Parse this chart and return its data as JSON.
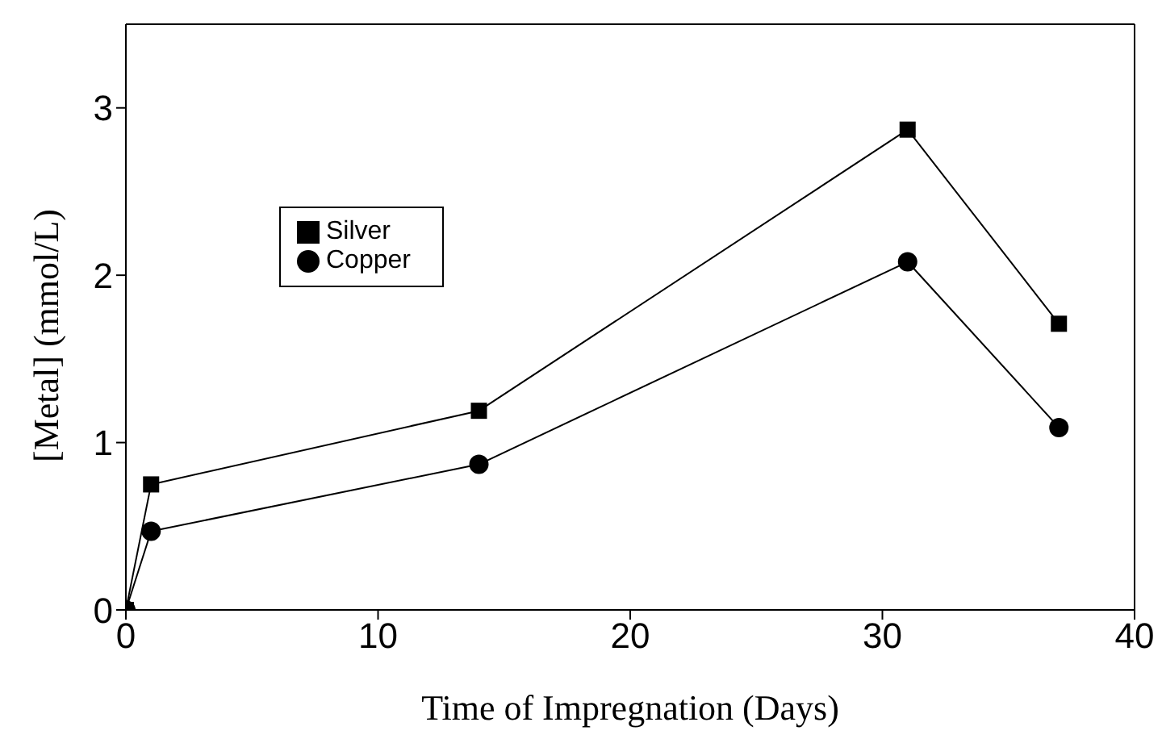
{
  "chart_data": {
    "type": "line",
    "xlabel": "Time of Impregnation (Days)",
    "ylabel": "[Metal] (mmol/L)",
    "xlim": [
      0,
      40
    ],
    "xticks": [
      0,
      10,
      20,
      30,
      40
    ],
    "ylim": [
      0,
      3.5
    ],
    "yticks": [
      0,
      1,
      2,
      3
    ],
    "grid": false,
    "legend": "top left",
    "line_style": "solid",
    "series": [
      {
        "name": "Silver",
        "color": "#000000",
        "marker": "square",
        "x": [
          0,
          1,
          14,
          31,
          37
        ],
        "values": [
          0,
          0.75,
          1.19,
          2.87,
          1.71
        ]
      },
      {
        "name": "Copper",
        "color": "#000000",
        "marker": "circle",
        "x": [
          0,
          1,
          14,
          31,
          37
        ],
        "values": [
          0,
          0.47,
          0.87,
          2.08,
          1.09
        ]
      }
    ]
  }
}
